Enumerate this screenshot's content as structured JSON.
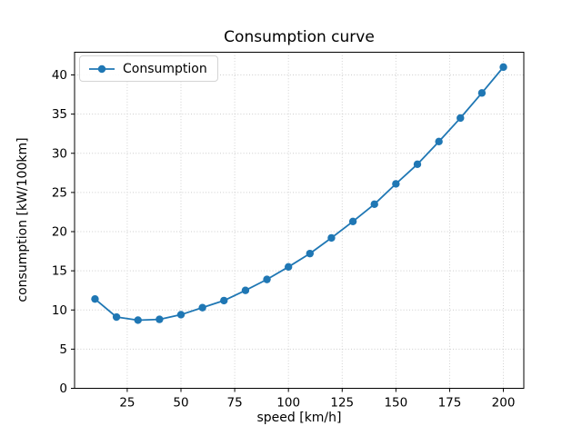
{
  "chart_data": {
    "type": "line",
    "title": "Consumption curve",
    "xlabel": "speed [km/h]",
    "ylabel": "consumption [kW/100km]",
    "series": [
      {
        "name": "Consumption",
        "color": "#1f77b4",
        "marker": "circle",
        "x": [
          10,
          20,
          30,
          40,
          50,
          60,
          70,
          80,
          90,
          100,
          110,
          120,
          130,
          140,
          150,
          160,
          170,
          180,
          190,
          200
        ],
        "y": [
          11.4,
          9.1,
          8.7,
          8.8,
          9.4,
          10.3,
          11.2,
          12.5,
          13.9,
          15.5,
          17.2,
          19.2,
          21.3,
          23.5,
          26.1,
          28.6,
          31.5,
          34.5,
          37.7,
          41.0
        ]
      }
    ],
    "x_ticks": [
      25,
      50,
      75,
      100,
      125,
      150,
      175,
      200
    ],
    "y_ticks": [
      0,
      5,
      10,
      15,
      20,
      25,
      30,
      35,
      40
    ],
    "xlim": [
      0.5,
      209.5
    ],
    "ylim": [
      0,
      42.9
    ],
    "grid": "dotted",
    "legend": {
      "label": "Consumption",
      "position": "upper left"
    }
  },
  "colors": {
    "line": "#1f77b4",
    "grid": "#cccccc",
    "spine": "#000000",
    "text": "#000000",
    "background": "#ffffff",
    "legend_border": "#d4d4d4"
  }
}
